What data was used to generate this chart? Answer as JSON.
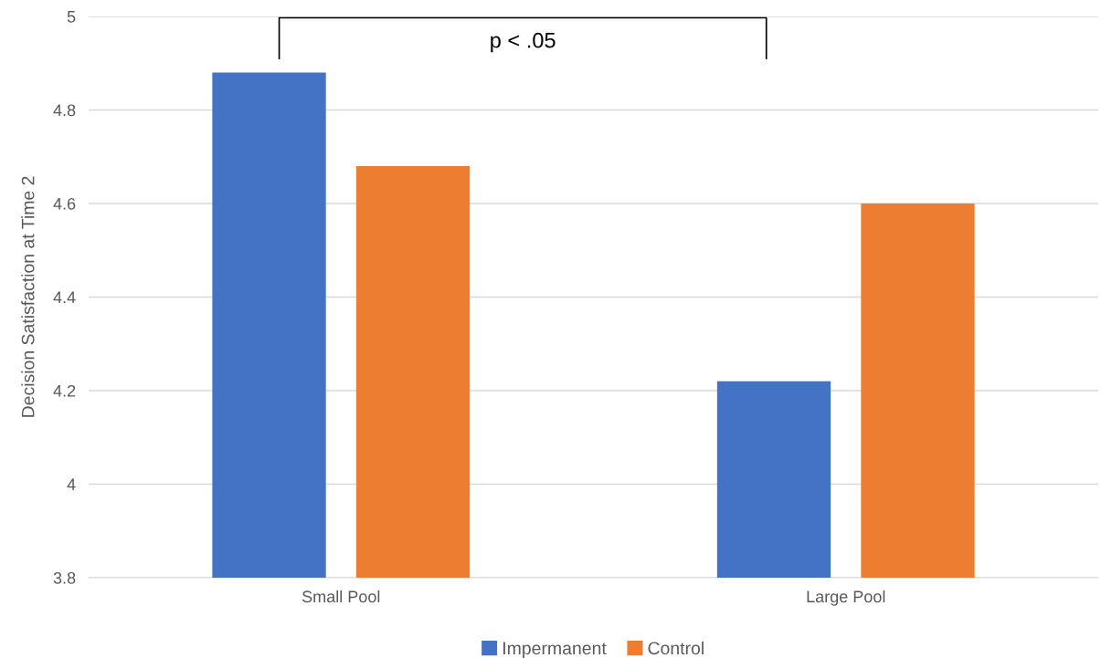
{
  "chart_data": {
    "type": "bar",
    "ylabel": "Decision Satisfaction at Time 2",
    "categories": [
      "Small Pool",
      "Large Pool"
    ],
    "series": [
      {
        "name": "Impermanent",
        "color": "#4472c4",
        "values": [
          4.88,
          4.22
        ]
      },
      {
        "name": "Control",
        "color": "#ed7d31",
        "values": [
          4.68,
          4.6
        ]
      }
    ],
    "ylim": [
      3.8,
      5
    ],
    "yticks": [
      3.8,
      4,
      4.2,
      4.4,
      4.6,
      4.8,
      5
    ],
    "grid": "y",
    "legend": "bottom",
    "annotations": [
      "p < .05"
    ]
  }
}
